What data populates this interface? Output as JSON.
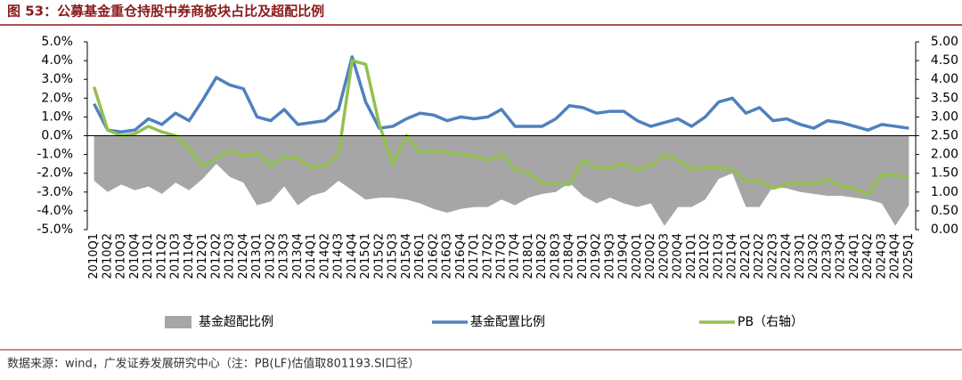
{
  "chart_data": {
    "type": "combo",
    "title": "图 53：公募基金重仓持股中券商板块占比及超配比例",
    "note": "数据来源：wind，广发证券发展研究中心（注：PB(LF)估值取801193.SI口径）",
    "categories": [
      "2010Q1",
      "2010Q2",
      "2010Q3",
      "2010Q4",
      "2011Q1",
      "2011Q2",
      "2011Q3",
      "2011Q4",
      "2012Q1",
      "2012Q2",
      "2012Q3",
      "2012Q4",
      "2013Q1",
      "2013Q2",
      "2013Q3",
      "2013Q4",
      "2014Q1",
      "2014Q2",
      "2014Q3",
      "2014Q4",
      "2015Q1",
      "2015Q2",
      "2015Q3",
      "2015Q4",
      "2016Q1",
      "2016Q2",
      "2016Q3",
      "2016Q4",
      "2017Q1",
      "2017Q2",
      "2017Q3",
      "2017Q4",
      "2018Q1",
      "2018Q2",
      "2018Q3",
      "2018Q4",
      "2019Q1",
      "2019Q2",
      "2019Q3",
      "2019Q4",
      "2020Q1",
      "2020Q2",
      "2020Q3",
      "2020Q4",
      "2021Q1",
      "2021Q2",
      "2021Q3",
      "2021Q4",
      "2022Q1",
      "2022Q2",
      "2022Q3",
      "2022Q4",
      "2023Q1",
      "2023Q2",
      "2023Q3",
      "2023Q4",
      "2024Q1",
      "2024Q2",
      "2024Q3",
      "2024Q4",
      "2025Q1"
    ],
    "series": [
      {
        "name": "基金超配比例",
        "type": "area",
        "color": "#a6a6a6",
        "values": [
          -2.4,
          -3.0,
          -2.6,
          -2.9,
          -2.7,
          -3.1,
          -2.5,
          -2.9,
          -2.3,
          -1.5,
          -2.2,
          -2.5,
          -3.7,
          -3.5,
          -2.7,
          -3.7,
          -3.2,
          -3.0,
          -2.4,
          -2.9,
          -3.4,
          -3.3,
          -3.3,
          -3.4,
          -3.6,
          -3.9,
          -4.1,
          -3.9,
          -3.8,
          -3.8,
          -3.4,
          -3.7,
          -3.3,
          -3.1,
          -3.0,
          -2.5,
          -3.2,
          -3.6,
          -3.3,
          -3.6,
          -3.8,
          -3.6,
          -4.8,
          -3.8,
          -3.8,
          -3.4,
          -2.3,
          -2.0,
          -3.8,
          -3.8,
          -2.7,
          -2.8,
          -3.0,
          -3.1,
          -3.2,
          -3.2,
          -3.3,
          -3.4,
          -3.6,
          -4.8,
          -3.7
        ]
      },
      {
        "name": "基金配置比例",
        "type": "line",
        "color": "#4f81bd",
        "values": [
          1.7,
          0.3,
          0.2,
          0.3,
          0.9,
          0.6,
          1.2,
          0.8,
          1.9,
          3.1,
          2.7,
          2.5,
          1.0,
          0.8,
          1.4,
          0.6,
          0.7,
          0.8,
          1.4,
          4.2,
          1.8,
          0.4,
          0.5,
          0.9,
          1.2,
          1.1,
          0.8,
          1.0,
          0.9,
          1.0,
          1.4,
          0.5,
          0.5,
          0.5,
          0.9,
          1.6,
          1.5,
          1.2,
          1.3,
          1.3,
          0.8,
          0.5,
          0.7,
          0.9,
          0.5,
          1.0,
          1.8,
          2.0,
          1.2,
          1.5,
          0.8,
          0.9,
          0.6,
          0.4,
          0.8,
          0.7,
          0.5,
          0.3,
          0.6,
          0.5,
          0.4
        ]
      },
      {
        "name": "PB（右轴）",
        "type": "line",
        "axis": "y2",
        "color": "#92c050",
        "values": [
          3.8,
          2.65,
          2.5,
          2.55,
          2.75,
          2.6,
          2.5,
          2.15,
          1.7,
          1.9,
          2.1,
          1.95,
          2.05,
          1.7,
          1.95,
          1.9,
          1.65,
          1.7,
          2.0,
          4.5,
          4.4,
          2.8,
          1.75,
          2.5,
          2.05,
          2.1,
          2.05,
          2.0,
          1.95,
          1.85,
          2.0,
          1.6,
          1.5,
          1.25,
          1.2,
          1.2,
          1.85,
          1.65,
          1.65,
          1.75,
          1.6,
          1.7,
          2.0,
          1.85,
          1.6,
          1.65,
          1.65,
          1.6,
          1.3,
          1.3,
          1.1,
          1.2,
          1.25,
          1.2,
          1.35,
          1.15,
          1.1,
          0.95,
          1.45,
          1.45,
          1.4
        ]
      }
    ],
    "ylim": [
      -5,
      5
    ],
    "yticks": [
      {
        "value": 5,
        "label": "5.0%"
      },
      {
        "value": 4,
        "label": "4.0%"
      },
      {
        "value": 3,
        "label": "3.0%"
      },
      {
        "value": 2,
        "label": "2.0%"
      },
      {
        "value": 1,
        "label": "1.0%"
      },
      {
        "value": 0,
        "label": "0.0%"
      },
      {
        "value": -1,
        "label": "-1.0%"
      },
      {
        "value": -2,
        "label": "-2.0%"
      },
      {
        "value": -3,
        "label": "-3.0%"
      },
      {
        "value": -4,
        "label": "-4.0%"
      },
      {
        "value": -5,
        "label": "-5.0%"
      }
    ],
    "y2lim": [
      0,
      5
    ],
    "y2ticks": [
      {
        "value": 5,
        "label": "5.00"
      },
      {
        "value": 4.5,
        "label": "4.50"
      },
      {
        "value": 4,
        "label": "4.00"
      },
      {
        "value": 3.5,
        "label": "3.50"
      },
      {
        "value": 3,
        "label": "3.00"
      },
      {
        "value": 2.5,
        "label": "2.50"
      },
      {
        "value": 2,
        "label": "2.00"
      },
      {
        "value": 1.5,
        "label": "1.50"
      },
      {
        "value": 1,
        "label": "1.00"
      },
      {
        "value": 0.5,
        "label": "0.50"
      },
      {
        "value": 0,
        "label": "0.00"
      }
    ]
  }
}
